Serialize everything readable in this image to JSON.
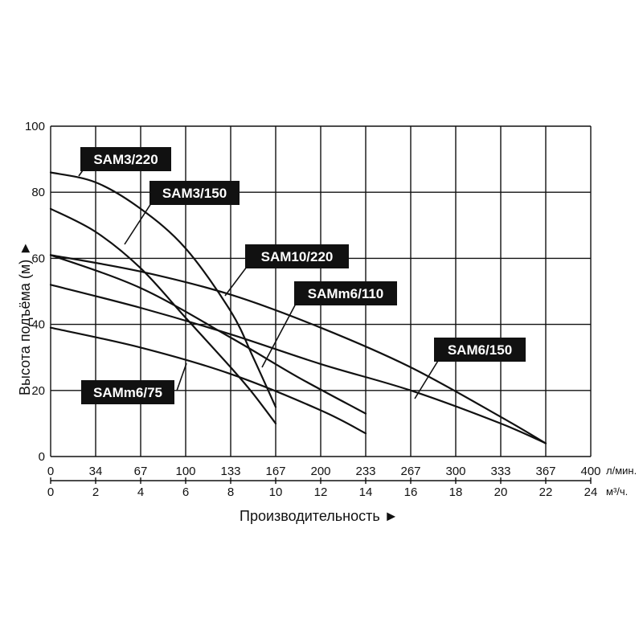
{
  "chart_data": {
    "type": "line",
    "title": "",
    "xlabel": "Производительность ►",
    "ylabel": "Высота подъёма (м) ►",
    "x_unit_primary": "л/мин.",
    "x_unit_secondary": "м³/ч.",
    "xlim": [
      0,
      24
    ],
    "ylim": [
      0,
      100
    ],
    "grid": true,
    "y_ticks": [
      "0",
      "20",
      "40",
      "60",
      "80",
      "100"
    ],
    "x_ticks_lpm": [
      "0",
      "34",
      "67",
      "100",
      "133",
      "167",
      "200",
      "233",
      "267",
      "300",
      "333",
      "367",
      "400"
    ],
    "x_ticks_m3h": [
      "0",
      "2",
      "4",
      "6",
      "8",
      "10",
      "12",
      "14",
      "16",
      "18",
      "20",
      "22",
      "24"
    ],
    "series": [
      {
        "name": "SAM3/220",
        "x": [
          0,
          2,
          4,
          6,
          8,
          9,
          10
        ],
        "y": [
          86,
          83,
          75,
          63,
          44,
          30,
          15
        ]
      },
      {
        "name": "SAM3/150",
        "x": [
          0,
          2,
          4,
          6,
          8,
          9,
          10
        ],
        "y": [
          75,
          68,
          57,
          42,
          27,
          19,
          10
        ]
      },
      {
        "name": "SAM10/220",
        "x": [
          0,
          4,
          8,
          12,
          16,
          20,
          22
        ],
        "y": [
          61,
          56,
          49,
          39,
          27,
          12,
          4
        ]
      },
      {
        "name": "SAMm6/110",
        "x": [
          0,
          4,
          8,
          11,
          14
        ],
        "y": [
          61,
          51,
          36,
          24,
          13
        ]
      },
      {
        "name": "SAM6/150",
        "x": [
          0,
          4,
          8,
          12,
          16,
          20,
          22
        ],
        "y": [
          52,
          45,
          37,
          28,
          20,
          10,
          4
        ]
      },
      {
        "name": "SAMm6/75",
        "x": [
          0,
          4,
          8,
          12,
          14
        ],
        "y": [
          39,
          33,
          25,
          14,
          7
        ]
      }
    ]
  }
}
